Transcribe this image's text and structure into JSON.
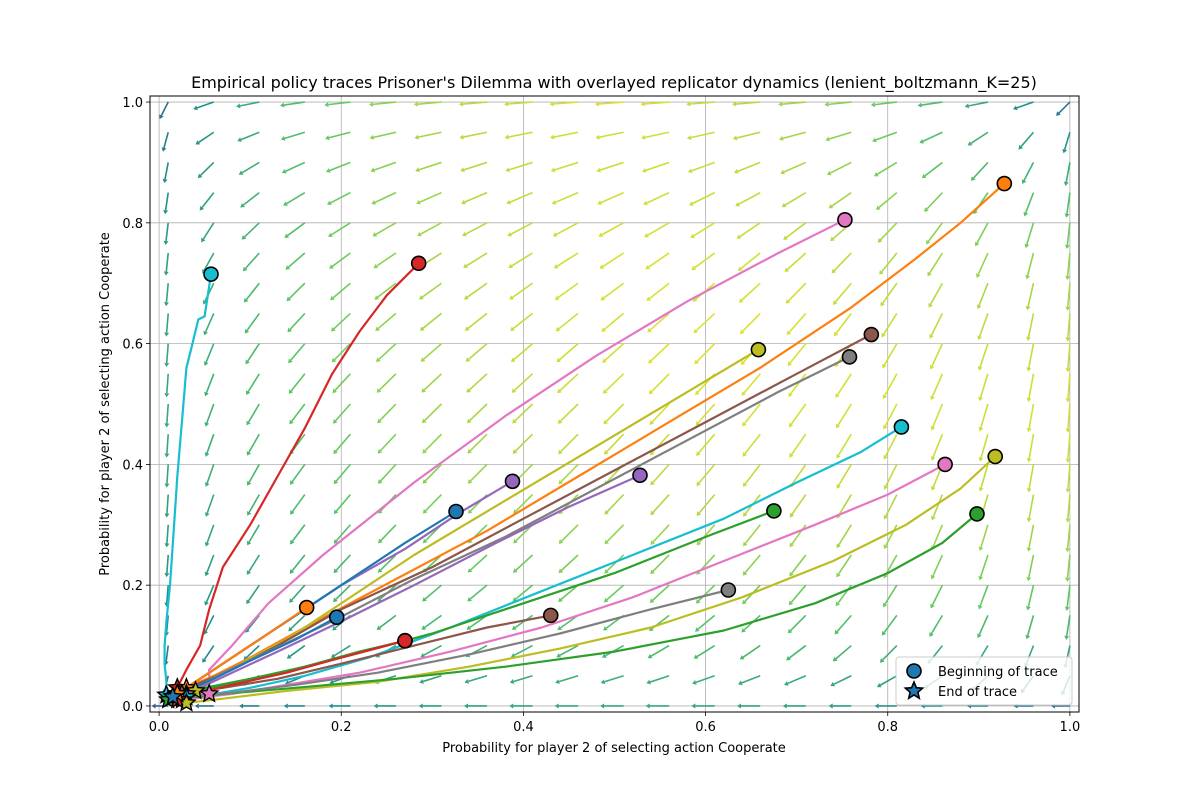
{
  "chart_data": {
    "type": "line",
    "title": "Empirical policy traces Prisoner's Dilemma with overlayed replicator dynamics (lenient_boltzmann_K=25)",
    "xlabel": "Probability for player 2 of selecting action Cooperate",
    "ylabel": "Probability for player 2 of selecting action Cooperate",
    "xlim": [
      -0.01,
      1.01
    ],
    "ylim": [
      -0.01,
      1.01
    ],
    "xticks": [
      "0.0",
      "0.2",
      "0.4",
      "0.6",
      "0.8",
      "1.0"
    ],
    "yticks": [
      "0.0",
      "0.2",
      "0.4",
      "0.6",
      "0.8",
      "1.0"
    ],
    "grid": true,
    "legend": {
      "position": "lower-right",
      "entries": [
        {
          "label": "Beginning of trace",
          "marker": "circle",
          "color": "#1f77b4"
        },
        {
          "label": "End of trace",
          "marker": "star",
          "color": "#1f77b4"
        }
      ]
    },
    "quiver": {
      "grid_x": [
        0.01,
        0.06,
        0.11,
        0.16,
        0.21,
        0.26,
        0.31,
        0.36,
        0.41,
        0.46,
        0.51,
        0.56,
        0.61,
        0.66,
        0.71,
        0.76,
        0.81,
        0.86,
        0.91,
        0.96,
        1.0
      ],
      "grid_y": [
        0.0,
        0.05,
        0.1,
        0.15,
        0.2,
        0.25,
        0.3,
        0.35,
        0.4,
        0.45,
        0.5,
        0.55,
        0.6,
        0.65,
        0.7,
        0.75,
        0.8,
        0.85,
        0.9,
        0.95,
        1.0
      ],
      "colormap": "viridis",
      "description": "replicator dynamics vectors pointing toward (0,0)"
    },
    "series": [
      {
        "color": "#17becf",
        "start": [
          0.057,
          0.715
        ],
        "end": [
          0.008,
          0.018
        ],
        "points": [
          [
            0.057,
            0.715
          ],
          [
            0.05,
            0.645
          ],
          [
            0.043,
            0.64
          ],
          [
            0.035,
            0.59
          ],
          [
            0.03,
            0.56
          ],
          [
            0.025,
            0.47
          ],
          [
            0.02,
            0.38
          ],
          [
            0.016,
            0.29
          ],
          [
            0.012,
            0.2
          ],
          [
            0.008,
            0.14
          ],
          [
            0.006,
            0.1
          ],
          [
            0.006,
            0.07
          ],
          [
            0.008,
            0.04
          ],
          [
            0.008,
            0.018
          ]
        ]
      },
      {
        "color": "#d62728",
        "start": [
          0.285,
          0.733
        ],
        "end": [
          0.02,
          0.03
        ],
        "points": [
          [
            0.285,
            0.733
          ],
          [
            0.25,
            0.68
          ],
          [
            0.22,
            0.62
          ],
          [
            0.19,
            0.55
          ],
          [
            0.16,
            0.46
          ],
          [
            0.13,
            0.38
          ],
          [
            0.1,
            0.3
          ],
          [
            0.07,
            0.23
          ],
          [
            0.055,
            0.16
          ],
          [
            0.045,
            0.1
          ],
          [
            0.03,
            0.06
          ],
          [
            0.02,
            0.03
          ]
        ]
      },
      {
        "color": "#e377c2",
        "start": [
          0.753,
          0.805
        ],
        "end": [
          0.055,
          0.02
        ],
        "points": [
          [
            0.753,
            0.805
          ],
          [
            0.68,
            0.75
          ],
          [
            0.58,
            0.67
          ],
          [
            0.48,
            0.58
          ],
          [
            0.38,
            0.48
          ],
          [
            0.28,
            0.37
          ],
          [
            0.18,
            0.25
          ],
          [
            0.12,
            0.17
          ],
          [
            0.08,
            0.1
          ],
          [
            0.055,
            0.06
          ],
          [
            0.055,
            0.02
          ]
        ]
      },
      {
        "color": "#ff7f0e",
        "start": [
          0.928,
          0.865
        ],
        "end": [
          0.03,
          0.03
        ],
        "points": [
          [
            0.928,
            0.865
          ],
          [
            0.88,
            0.8
          ],
          [
            0.83,
            0.74
          ],
          [
            0.76,
            0.66
          ],
          [
            0.66,
            0.56
          ],
          [
            0.56,
            0.47
          ],
          [
            0.46,
            0.38
          ],
          [
            0.36,
            0.29
          ],
          [
            0.26,
            0.21
          ],
          [
            0.16,
            0.13
          ],
          [
            0.1,
            0.08
          ],
          [
            0.06,
            0.05
          ],
          [
            0.03,
            0.03
          ]
        ]
      },
      {
        "color": "#bcbd22",
        "start": [
          0.658,
          0.59
        ],
        "end": [
          0.04,
          0.025
        ],
        "points": [
          [
            0.658,
            0.59
          ],
          [
            0.58,
            0.52
          ],
          [
            0.48,
            0.43
          ],
          [
            0.38,
            0.34
          ],
          [
            0.28,
            0.25
          ],
          [
            0.2,
            0.17
          ],
          [
            0.14,
            0.11
          ],
          [
            0.09,
            0.07
          ],
          [
            0.06,
            0.045
          ],
          [
            0.04,
            0.025
          ]
        ]
      },
      {
        "color": "#8c564b",
        "start": [
          0.782,
          0.615
        ],
        "end": [
          0.025,
          0.02
        ],
        "points": [
          [
            0.782,
            0.615
          ],
          [
            0.7,
            0.55
          ],
          [
            0.6,
            0.47
          ],
          [
            0.5,
            0.39
          ],
          [
            0.4,
            0.31
          ],
          [
            0.3,
            0.23
          ],
          [
            0.2,
            0.16
          ],
          [
            0.13,
            0.1
          ],
          [
            0.08,
            0.06
          ],
          [
            0.04,
            0.035
          ],
          [
            0.025,
            0.02
          ]
        ]
      },
      {
        "color": "#7f7f7f",
        "start": [
          0.758,
          0.578
        ],
        "end": [
          0.025,
          0.02
        ],
        "points": [
          [
            0.758,
            0.578
          ],
          [
            0.68,
            0.52
          ],
          [
            0.58,
            0.44
          ],
          [
            0.48,
            0.36
          ],
          [
            0.38,
            0.28
          ],
          [
            0.28,
            0.21
          ],
          [
            0.19,
            0.14
          ],
          [
            0.12,
            0.09
          ],
          [
            0.07,
            0.055
          ],
          [
            0.04,
            0.03
          ],
          [
            0.025,
            0.02
          ]
        ]
      },
      {
        "color": "#9467bd",
        "start": [
          0.388,
          0.372
        ],
        "end": [
          0.02,
          0.02
        ],
        "points": [
          [
            0.388,
            0.372
          ],
          [
            0.33,
            0.32
          ],
          [
            0.27,
            0.26
          ],
          [
            0.2,
            0.2
          ],
          [
            0.14,
            0.14
          ],
          [
            0.09,
            0.09
          ],
          [
            0.05,
            0.05
          ],
          [
            0.03,
            0.03
          ],
          [
            0.02,
            0.02
          ]
        ]
      },
      {
        "color": "#1f77b4",
        "start": [
          0.326,
          0.322
        ],
        "end": [
          0.015,
          0.015
        ],
        "points": [
          [
            0.326,
            0.322
          ],
          [
            0.27,
            0.27
          ],
          [
            0.21,
            0.21
          ],
          [
            0.15,
            0.15
          ],
          [
            0.1,
            0.1
          ],
          [
            0.06,
            0.06
          ],
          [
            0.03,
            0.03
          ],
          [
            0.015,
            0.015
          ]
        ]
      },
      {
        "color": "#9467bd",
        "start": [
          0.528,
          0.382
        ],
        "end": [
          0.03,
          0.02
        ],
        "points": [
          [
            0.528,
            0.382
          ],
          [
            0.45,
            0.33
          ],
          [
            0.37,
            0.27
          ],
          [
            0.28,
            0.2
          ],
          [
            0.2,
            0.14
          ],
          [
            0.13,
            0.09
          ],
          [
            0.08,
            0.055
          ],
          [
            0.045,
            0.03
          ],
          [
            0.03,
            0.02
          ]
        ]
      },
      {
        "color": "#17becf",
        "start": [
          0.815,
          0.462
        ],
        "end": [
          0.03,
          0.015
        ],
        "points": [
          [
            0.815,
            0.462
          ],
          [
            0.77,
            0.42
          ],
          [
            0.7,
            0.37
          ],
          [
            0.62,
            0.31
          ],
          [
            0.52,
            0.25
          ],
          [
            0.42,
            0.19
          ],
          [
            0.32,
            0.13
          ],
          [
            0.23,
            0.08
          ],
          [
            0.16,
            0.05
          ],
          [
            0.1,
            0.03
          ],
          [
            0.06,
            0.02
          ],
          [
            0.03,
            0.015
          ]
        ]
      },
      {
        "color": "#2ca02c",
        "start": [
          0.675,
          0.323
        ],
        "end": [
          0.02,
          0.02
        ],
        "points": [
          [
            0.675,
            0.323
          ],
          [
            0.6,
            0.28
          ],
          [
            0.5,
            0.22
          ],
          [
            0.4,
            0.17
          ],
          [
            0.3,
            0.12
          ],
          [
            0.2,
            0.08
          ],
          [
            0.12,
            0.05
          ],
          [
            0.06,
            0.03
          ],
          [
            0.02,
            0.02
          ]
        ]
      },
      {
        "color": "#e377c2",
        "start": [
          0.863,
          0.4
        ],
        "end": [
          0.025,
          0.01
        ],
        "points": [
          [
            0.863,
            0.4
          ],
          [
            0.8,
            0.35
          ],
          [
            0.72,
            0.3
          ],
          [
            0.62,
            0.24
          ],
          [
            0.52,
            0.18
          ],
          [
            0.42,
            0.13
          ],
          [
            0.32,
            0.09
          ],
          [
            0.22,
            0.055
          ],
          [
            0.14,
            0.035
          ],
          [
            0.08,
            0.02
          ],
          [
            0.025,
            0.01
          ]
        ]
      },
      {
        "color": "#bcbd22",
        "start": [
          0.918,
          0.413
        ],
        "end": [
          0.03,
          0.005
        ],
        "points": [
          [
            0.918,
            0.413
          ],
          [
            0.88,
            0.36
          ],
          [
            0.82,
            0.3
          ],
          [
            0.74,
            0.24
          ],
          [
            0.64,
            0.18
          ],
          [
            0.54,
            0.13
          ],
          [
            0.44,
            0.095
          ],
          [
            0.34,
            0.065
          ],
          [
            0.24,
            0.04
          ],
          [
            0.14,
            0.025
          ],
          [
            0.07,
            0.012
          ],
          [
            0.03,
            0.005
          ]
        ]
      },
      {
        "color": "#2ca02c",
        "start": [
          0.898,
          0.318
        ],
        "end": [
          0.01,
          0.01
        ],
        "points": [
          [
            0.898,
            0.318
          ],
          [
            0.86,
            0.27
          ],
          [
            0.8,
            0.22
          ],
          [
            0.72,
            0.17
          ],
          [
            0.62,
            0.125
          ],
          [
            0.5,
            0.09
          ],
          [
            0.38,
            0.065
          ],
          [
            0.26,
            0.045
          ],
          [
            0.15,
            0.03
          ],
          [
            0.07,
            0.02
          ],
          [
            0.01,
            0.01
          ]
        ]
      },
      {
        "color": "#7f7f7f",
        "start": [
          0.625,
          0.192
        ],
        "end": [
          0.015,
          0.015
        ],
        "points": [
          [
            0.625,
            0.192
          ],
          [
            0.54,
            0.16
          ],
          [
            0.44,
            0.12
          ],
          [
            0.34,
            0.085
          ],
          [
            0.24,
            0.055
          ],
          [
            0.15,
            0.035
          ],
          [
            0.08,
            0.022
          ],
          [
            0.03,
            0.015
          ],
          [
            0.015,
            0.015
          ]
        ]
      },
      {
        "color": "#8c564b",
        "start": [
          0.43,
          0.15
        ],
        "end": [
          0.02,
          0.02
        ],
        "points": [
          [
            0.43,
            0.15
          ],
          [
            0.36,
            0.13
          ],
          [
            0.28,
            0.1
          ],
          [
            0.2,
            0.07
          ],
          [
            0.13,
            0.045
          ],
          [
            0.07,
            0.03
          ],
          [
            0.02,
            0.02
          ]
        ]
      },
      {
        "color": "#2ca02c",
        "start": [
          0.27,
          0.108
        ],
        "end": [
          0.015,
          0.015
        ],
        "points": [
          [
            0.27,
            0.108
          ],
          [
            0.22,
            0.09
          ],
          [
            0.16,
            0.065
          ],
          [
            0.1,
            0.045
          ],
          [
            0.05,
            0.03
          ],
          [
            0.015,
            0.015
          ]
        ]
      },
      {
        "color": "#d62728",
        "start": [
          0.27,
          0.108
        ],
        "end": [
          0.02,
          0.01
        ],
        "points": [
          [
            0.27,
            0.108
          ],
          [
            0.2,
            0.08
          ],
          [
            0.14,
            0.055
          ],
          [
            0.08,
            0.035
          ],
          [
            0.04,
            0.02
          ],
          [
            0.02,
            0.01
          ]
        ]
      },
      {
        "color": "#ff7f0e",
        "start": [
          0.162,
          0.163
        ],
        "end": [
          0.02,
          0.02
        ],
        "points": [
          [
            0.162,
            0.163
          ],
          [
            0.12,
            0.12
          ],
          [
            0.08,
            0.08
          ],
          [
            0.05,
            0.05
          ],
          [
            0.02,
            0.02
          ]
        ]
      },
      {
        "color": "#1f77b4",
        "start": [
          0.195,
          0.147
        ],
        "end": [
          0.015,
          0.015
        ],
        "points": [
          [
            0.195,
            0.147
          ],
          [
            0.15,
            0.11
          ],
          [
            0.1,
            0.075
          ],
          [
            0.06,
            0.045
          ],
          [
            0.03,
            0.025
          ],
          [
            0.015,
            0.015
          ]
        ]
      }
    ]
  }
}
